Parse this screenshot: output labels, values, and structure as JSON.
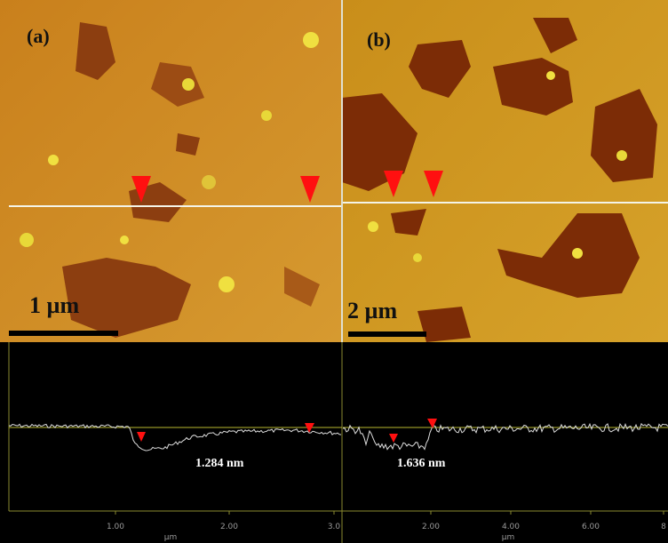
{
  "panels": [
    {
      "label": "(a)",
      "scale_bar": "1 µm",
      "height_label": "1.284 nm",
      "ticks": [
        "1.00",
        "2.00",
        "3.0"
      ],
      "axis_unit": "µm"
    },
    {
      "label": "(b)",
      "scale_bar": "2 µm",
      "height_label": "1.636 nm",
      "ticks": [
        "2.00",
        "4.00",
        "6.00",
        "8"
      ],
      "axis_unit": "µm"
    }
  ]
}
